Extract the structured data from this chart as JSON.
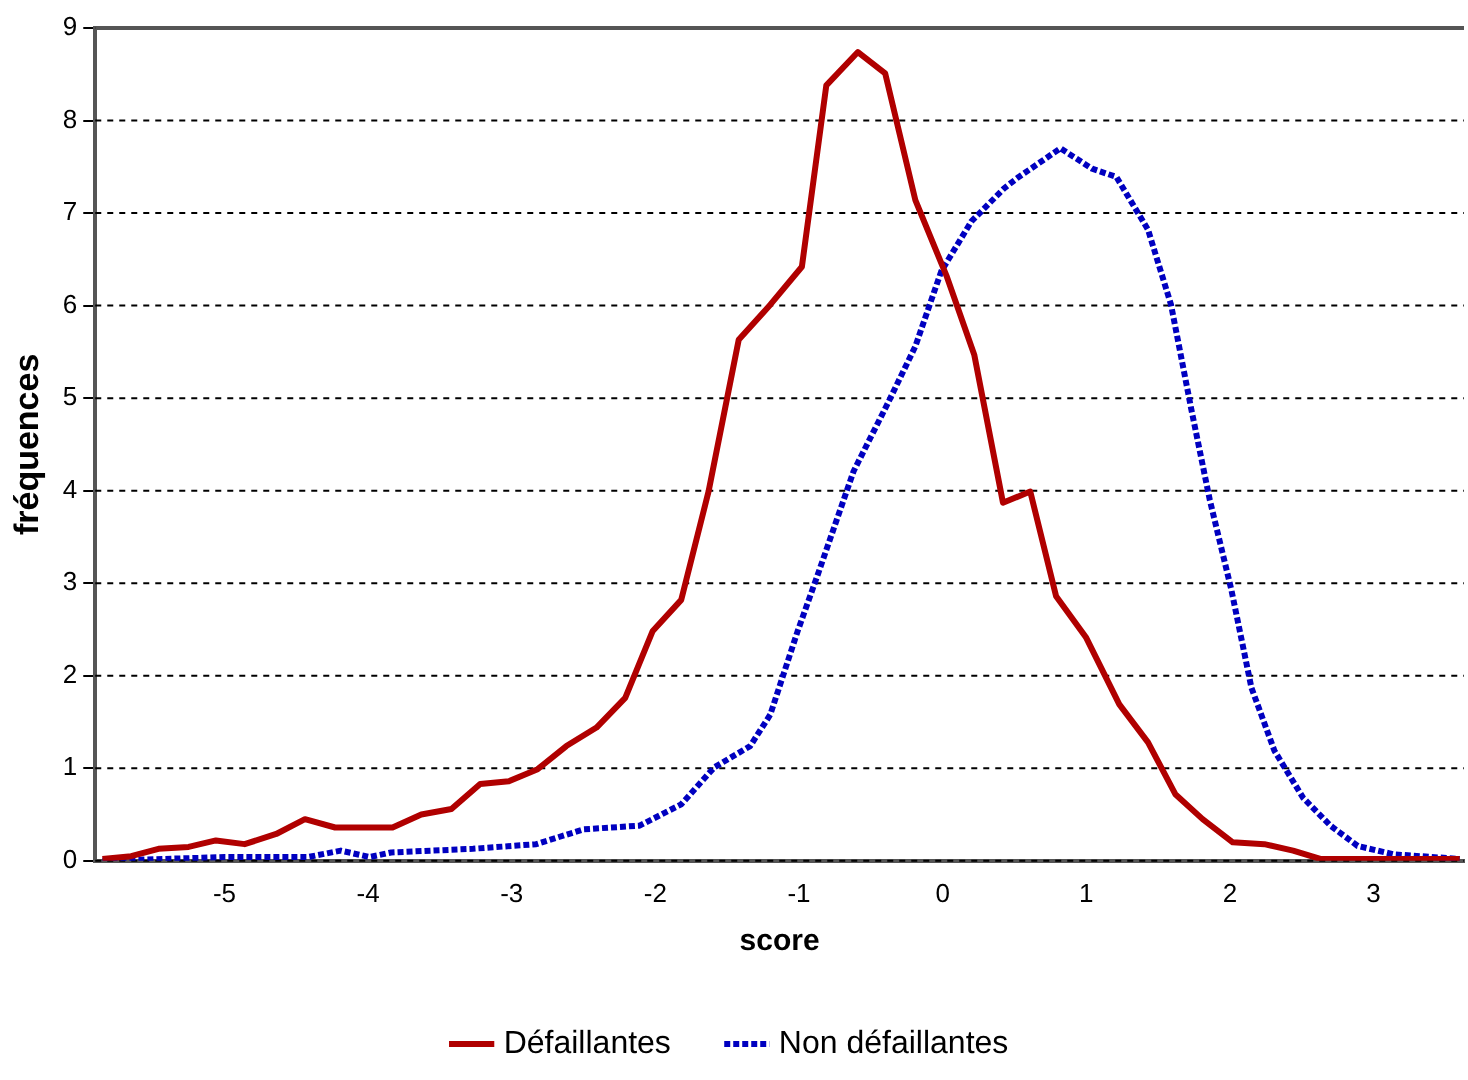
{
  "chart_data": {
    "type": "line",
    "xlabel": "score",
    "ylabel": "fréquences",
    "xlim": [
      -5.9,
      3.63
    ],
    "ylim": [
      0,
      9
    ],
    "xticks": [
      -5,
      -4,
      -3,
      -2,
      -1,
      0,
      1,
      2,
      3
    ],
    "yticks": [
      0,
      1,
      2,
      3,
      4,
      5,
      6,
      7,
      8,
      9
    ],
    "grid": "y",
    "legend": "bottom",
    "marker": "none",
    "series": [
      {
        "name": "Défaillantes",
        "color": "#b00000",
        "line_style": "solid",
        "x": [
          -5.85,
          -5.65,
          -5.46,
          -5.25,
          -5.06,
          -4.86,
          -4.64,
          -4.44,
          -4.23,
          -3.83,
          -3.63,
          -3.42,
          -3.22,
          -3.02,
          -2.82,
          -2.62,
          -2.41,
          -2.21,
          -2.02,
          -1.82,
          -1.63,
          -1.42,
          -1.2,
          -0.98,
          -0.81,
          -0.59,
          -0.4,
          -0.19,
          0.03,
          0.22,
          0.42,
          0.61,
          0.79,
          1.0,
          1.23,
          1.43,
          1.62,
          1.81,
          2.02,
          2.24,
          2.44,
          2.63,
          3.0,
          3.6
        ],
        "values": [
          0.02,
          0.05,
          0.13,
          0.15,
          0.22,
          0.18,
          0.29,
          0.45,
          0.36,
          0.36,
          0.5,
          0.56,
          0.83,
          0.86,
          0.99,
          1.24,
          1.44,
          1.76,
          2.48,
          2.82,
          3.99,
          5.63,
          6.01,
          6.42,
          8.38,
          8.74,
          8.51,
          7.14,
          6.31,
          5.47,
          3.87,
          3.99,
          2.86,
          2.41,
          1.69,
          1.28,
          0.72,
          0.45,
          0.2,
          0.18,
          0.11,
          0.02,
          0.02,
          0.02
        ]
      },
      {
        "name": "Non défaillantes",
        "color": "#0000c0",
        "line_style": "dotted",
        "x": [
          -5.85,
          -5.0,
          -4.42,
          -4.19,
          -3.99,
          -3.84,
          -3.27,
          -2.83,
          -2.5,
          -2.11,
          -1.82,
          -1.59,
          -1.34,
          -1.2,
          -1.01,
          -0.87,
          -0.62,
          -0.38,
          -0.19,
          -0.01,
          0.2,
          0.43,
          0.53,
          0.82,
          1.04,
          1.21,
          1.43,
          1.59,
          1.73,
          1.86,
          2.01,
          2.15,
          2.31,
          2.51,
          2.7,
          2.89,
          3.14,
          3.6
        ],
        "values": [
          0,
          0.04,
          0.04,
          0.11,
          0.04,
          0.09,
          0.13,
          0.18,
          0.34,
          0.38,
          0.61,
          1.01,
          1.24,
          1.58,
          2.48,
          3.09,
          4.21,
          4.95,
          5.56,
          6.37,
          6.91,
          7.27,
          7.39,
          7.7,
          7.48,
          7.39,
          6.82,
          6.01,
          4.89,
          3.9,
          2.93,
          1.87,
          1.19,
          0.68,
          0.38,
          0.16,
          0.07,
          0.02
        ]
      }
    ]
  }
}
